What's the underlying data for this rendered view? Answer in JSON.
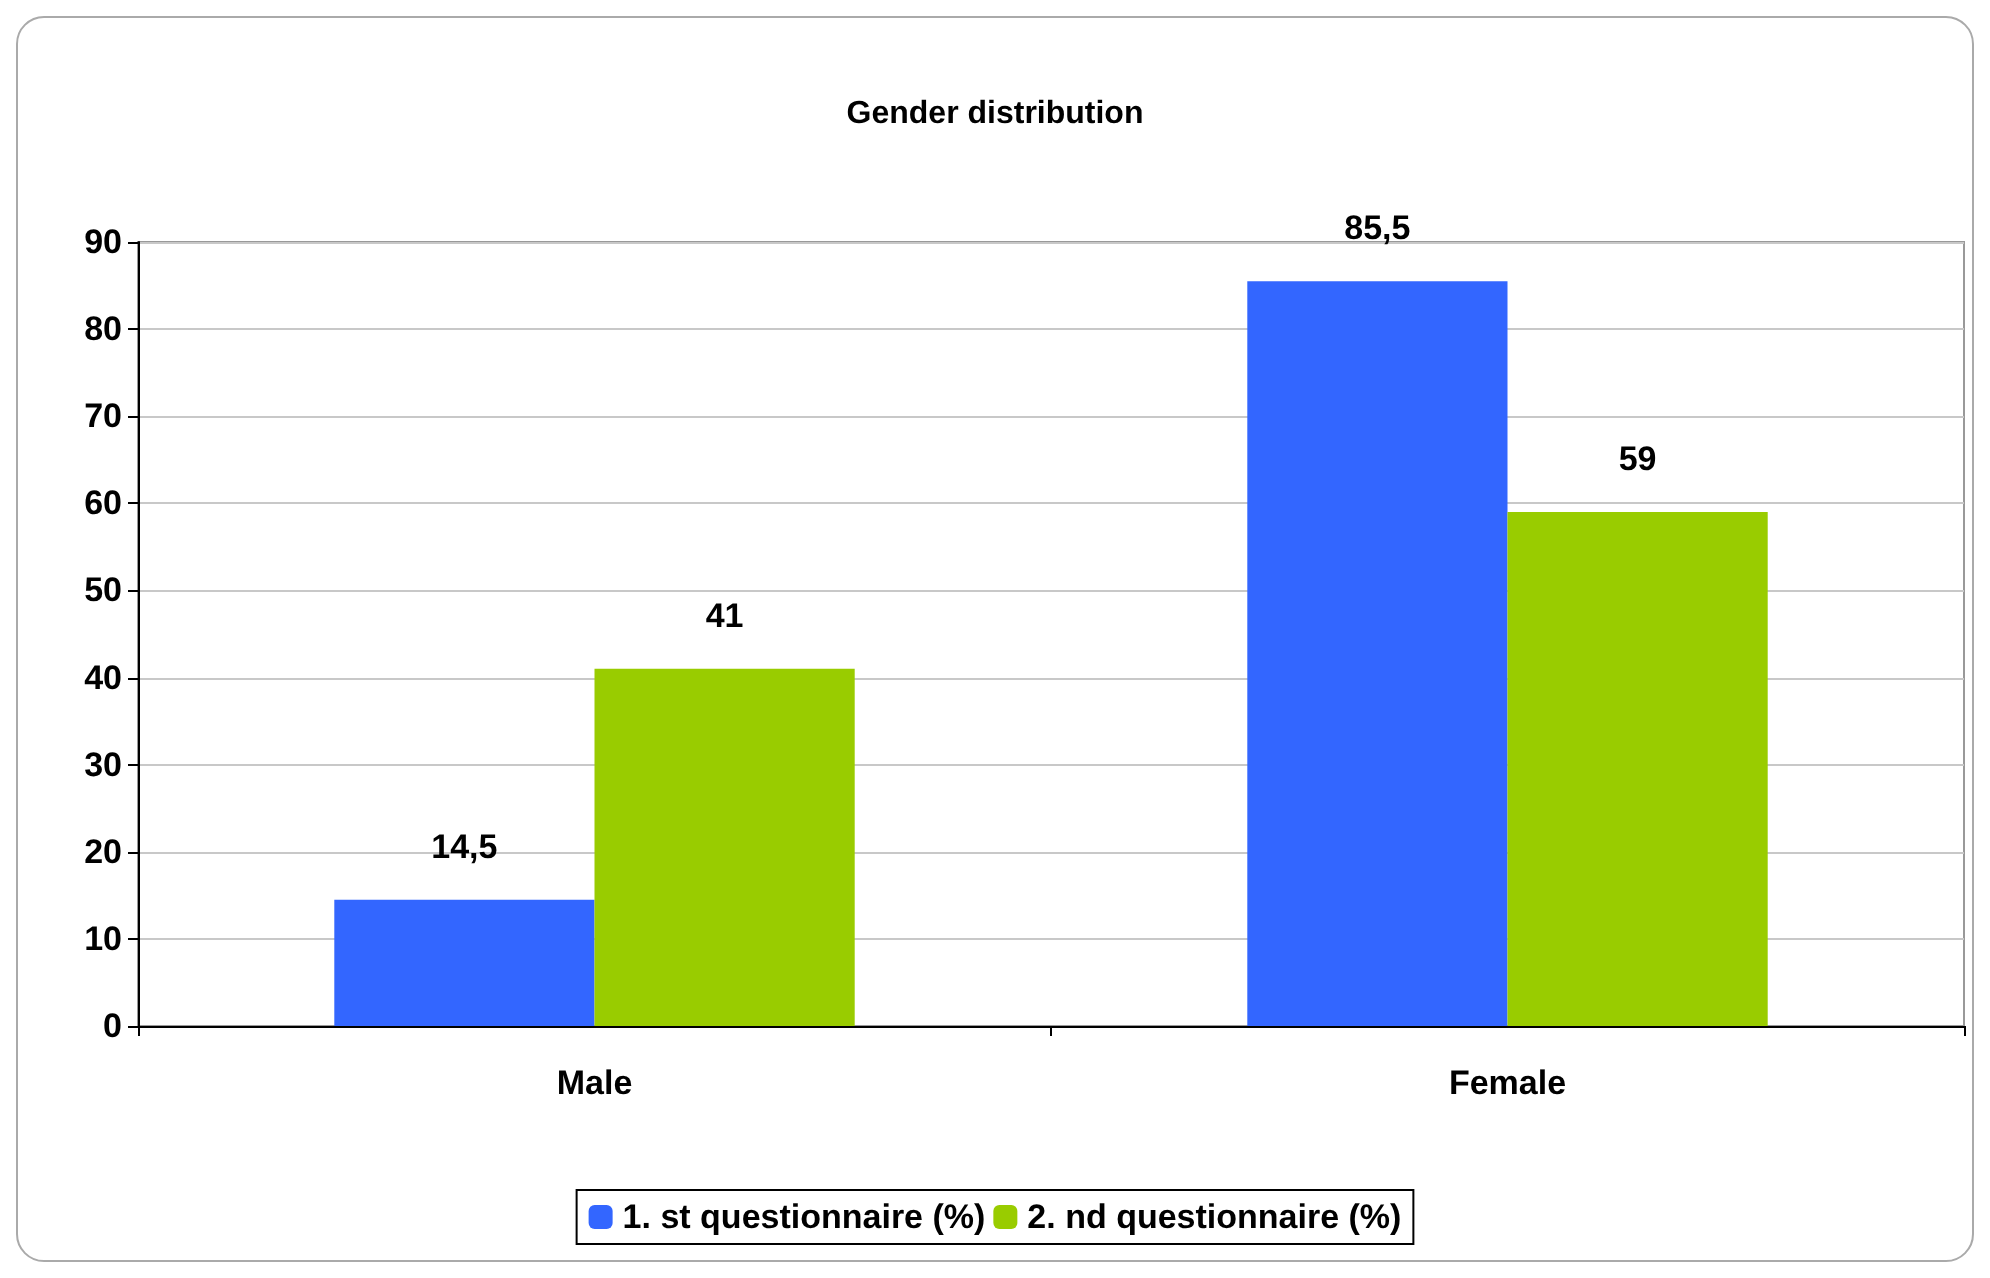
{
  "chart_data": {
    "type": "bar",
    "title": "Gender distribution",
    "categories": [
      "Male",
      "Female"
    ],
    "series": [
      {
        "name": "1. st questionnaire (%)",
        "color": "#3366ff",
        "values": [
          14.5,
          85.5
        ],
        "value_labels": [
          "14,5",
          "85,5"
        ]
      },
      {
        "name": "2. nd questionnaire (%)",
        "color": "#99cc00",
        "values": [
          41,
          59
        ],
        "value_labels": [
          "41",
          "59"
        ]
      }
    ],
    "ylim": [
      0,
      90
    ],
    "yticks": [
      0,
      10,
      20,
      30,
      40,
      50,
      60,
      70,
      80,
      90
    ],
    "grid": "y",
    "legend": "bottom"
  }
}
